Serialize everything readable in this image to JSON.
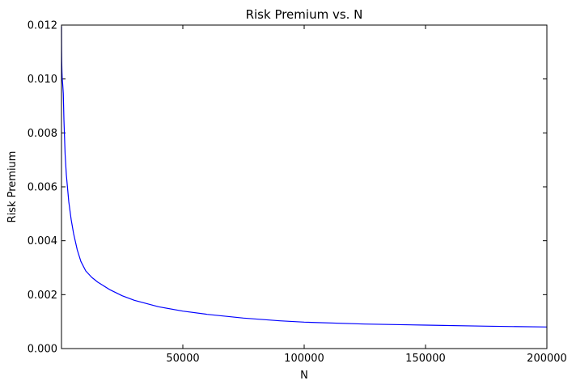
{
  "chart_data": {
    "type": "line",
    "title": "Risk Premium vs. N",
    "xlabel": "N",
    "ylabel": "Risk Premium",
    "xlim": [
      1,
      200000
    ],
    "ylim": [
      0,
      0.012
    ],
    "grid": false,
    "legend": "none",
    "x_ticks": [
      50000,
      100000,
      150000,
      200000
    ],
    "x_tick_labels": [
      "50000",
      "100000",
      "150000",
      "200000"
    ],
    "y_ticks": [
      0,
      0.002,
      0.004,
      0.006,
      0.008,
      0.01,
      0.012
    ],
    "y_tick_labels": [
      "0.000",
      "0.002",
      "0.004",
      "0.006",
      "0.008",
      "0.010",
      "0.012"
    ],
    "series": [
      {
        "color": "#0000ff",
        "x": [
          10,
          20,
          50,
          100,
          200,
          300,
          500,
          750,
          1000,
          1500,
          2000,
          3000,
          4000,
          5000,
          6500,
          8000,
          10000,
          12500,
          15000,
          20000,
          25000,
          30000,
          40000,
          50000,
          60000,
          75000,
          90000,
          100000,
          125000,
          150000,
          175000,
          200000
        ],
        "y": [
          0.01195,
          0.01157,
          0.01105,
          0.01065,
          0.01026,
          0.01002,
          0.00981,
          0.00946,
          0.0085,
          0.0072,
          0.00645,
          0.00545,
          0.00478,
          0.00426,
          0.00366,
          0.00323,
          0.00288,
          0.00264,
          0.00246,
          0.00218,
          0.00196,
          0.00179,
          0.00155,
          0.00139,
          0.00127,
          0.00113,
          0.00103,
          0.00098,
          0.00091,
          0.00087,
          0.00083,
          0.0008
        ]
      }
    ]
  }
}
